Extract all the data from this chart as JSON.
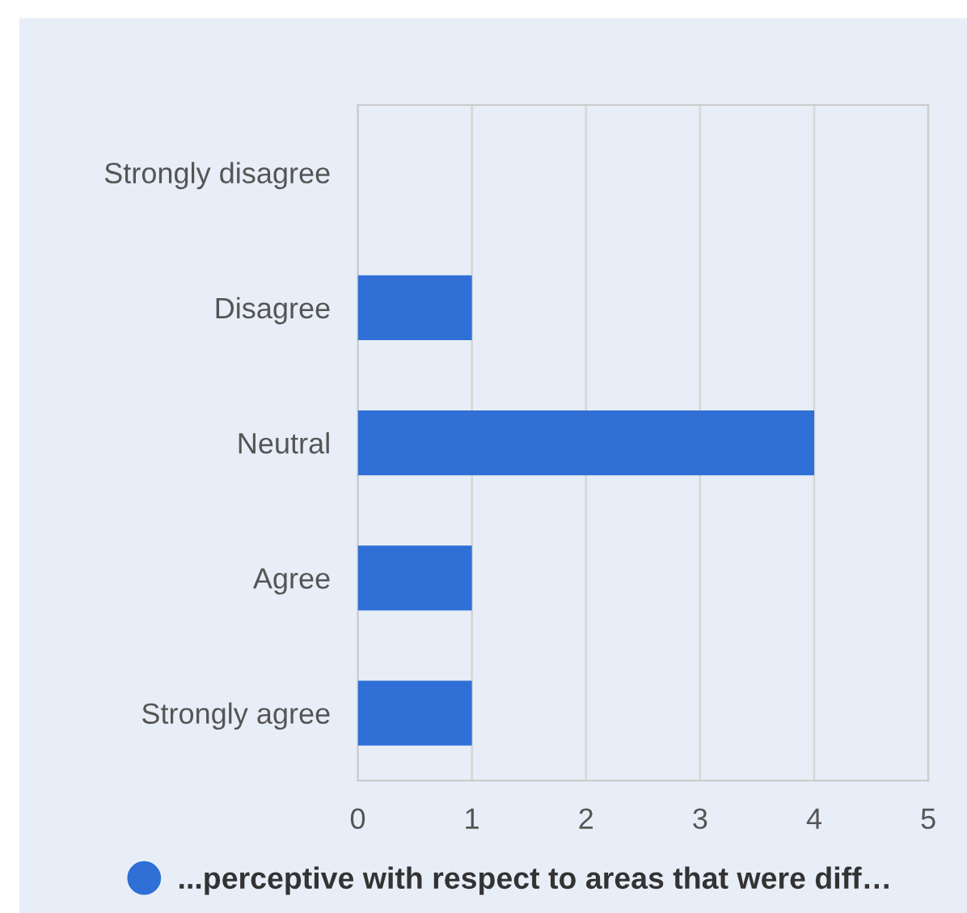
{
  "chart_data": {
    "type": "bar",
    "orientation": "horizontal",
    "categories": [
      "Strongly disagree",
      "Disagree",
      "Neutral",
      "Agree",
      "Strongly agree"
    ],
    "series": [
      {
        "name": "...perceptive with respect to areas that were diff…",
        "color": "#2f6fd6",
        "values": [
          0,
          1,
          4,
          1,
          1
        ]
      }
    ],
    "xlim": [
      0,
      5
    ],
    "xticks": [
      0,
      1,
      2,
      3,
      4,
      5
    ],
    "grid": "x",
    "legend": "bottom"
  }
}
